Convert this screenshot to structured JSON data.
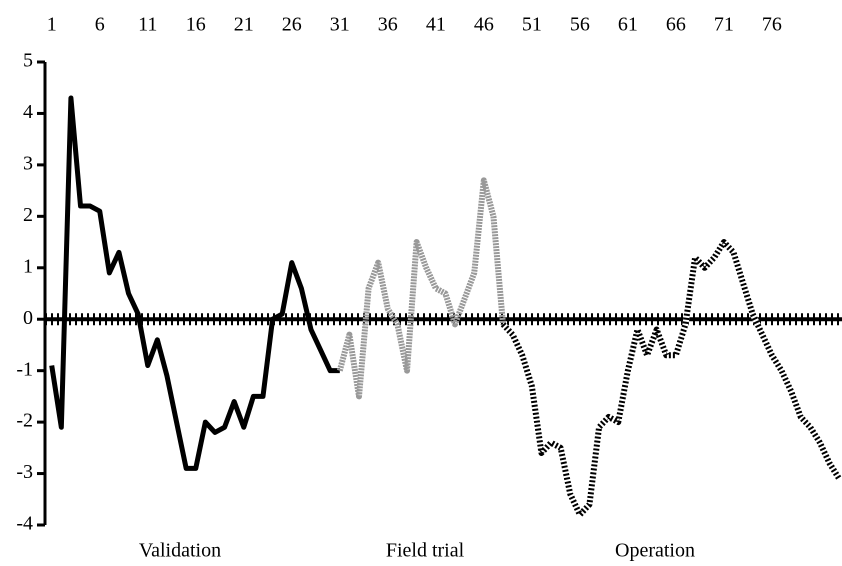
{
  "chart_data": {
    "type": "line",
    "x": [
      1,
      2,
      3,
      4,
      5,
      6,
      7,
      8,
      9,
      10,
      11,
      12,
      13,
      14,
      15,
      16,
      17,
      18,
      19,
      20,
      21,
      22,
      23,
      24,
      25,
      26,
      27,
      28,
      29,
      30,
      31,
      32,
      33,
      34,
      35,
      36,
      37,
      38,
      39,
      40,
      41,
      42,
      43,
      44,
      45,
      46,
      47,
      48,
      49,
      50,
      51,
      52,
      53,
      54,
      55,
      56,
      57,
      58,
      59,
      60,
      61,
      62,
      63,
      64,
      65,
      66,
      67,
      68,
      69,
      70,
      71,
      72,
      73,
      74,
      75,
      76,
      77,
      78,
      79,
      80,
      81,
      82,
      83
    ],
    "xlim": [
      0.3,
      83.3
    ],
    "xticks": [
      1,
      6,
      11,
      16,
      21,
      26,
      31,
      36,
      41,
      46,
      51,
      56,
      61,
      66,
      71,
      76
    ],
    "ylim": [
      -4,
      5
    ],
    "yticks": [
      -4,
      -3,
      -2,
      -1,
      0,
      1,
      2,
      3,
      4,
      5
    ],
    "series": [
      {
        "name": "Validation",
        "color": "#000000",
        "style": "solid",
        "values": [
          -0.9,
          -2.1,
          4.3,
          2.2,
          2.2,
          2.1,
          0.9,
          1.3,
          0.5,
          0.1,
          -0.9,
          -0.4,
          -1.1,
          -2.0,
          -2.9,
          -2.9,
          -2.0,
          -2.2,
          -2.1,
          -1.6,
          -2.1,
          -1.5,
          -1.5,
          0.0,
          0.1,
          1.1,
          0.6,
          -0.2,
          -0.6,
          -1.0,
          -1.0,
          null,
          null,
          null,
          null,
          null,
          null,
          null,
          null,
          null,
          null,
          null,
          null,
          null,
          null,
          null,
          null,
          null,
          null,
          null,
          null,
          null,
          null,
          null,
          null,
          null,
          null,
          null,
          null,
          null,
          null,
          null,
          null,
          null,
          null,
          null,
          null,
          null,
          null,
          null,
          null,
          null,
          null,
          null,
          null,
          null,
          null,
          null,
          null,
          null,
          null,
          null,
          null
        ]
      },
      {
        "name": "Field trial",
        "color": "#999999",
        "style": "dotted",
        "values": [
          null,
          null,
          null,
          null,
          null,
          null,
          null,
          null,
          null,
          null,
          null,
          null,
          null,
          null,
          null,
          null,
          null,
          null,
          null,
          null,
          null,
          null,
          null,
          null,
          null,
          null,
          null,
          null,
          null,
          null,
          -1.0,
          -0.3,
          -1.5,
          0.6,
          1.1,
          0.2,
          -0.1,
          -1.0,
          1.5,
          1.0,
          0.6,
          0.5,
          -0.1,
          0.4,
          0.9,
          2.7,
          2.0,
          -0.1,
          null,
          null,
          null,
          null,
          null,
          null,
          null,
          null,
          null,
          null,
          null,
          null,
          null,
          null,
          null,
          null,
          null,
          null,
          null,
          null,
          null,
          null,
          null,
          null,
          null,
          null,
          null,
          null,
          null,
          null,
          null,
          null,
          null,
          null,
          null
        ]
      },
      {
        "name": "Operation",
        "color": "#000000",
        "style": "hatched",
        "values": [
          null,
          null,
          null,
          null,
          null,
          null,
          null,
          null,
          null,
          null,
          null,
          null,
          null,
          null,
          null,
          null,
          null,
          null,
          null,
          null,
          null,
          null,
          null,
          null,
          null,
          null,
          null,
          null,
          null,
          null,
          null,
          null,
          null,
          null,
          null,
          null,
          null,
          null,
          null,
          null,
          null,
          null,
          null,
          null,
          null,
          null,
          null,
          -0.1,
          -0.3,
          -0.7,
          -1.3,
          -2.6,
          -2.4,
          -2.5,
          -3.4,
          -3.8,
          -3.6,
          -2.1,
          -1.9,
          -2.0,
          -1.0,
          -0.2,
          -0.7,
          -0.2,
          -0.7,
          -0.7,
          -0.1,
          1.2,
          1.0,
          1.2,
          1.5,
          1.3,
          0.7,
          0.1,
          -0.3,
          -0.7,
          -1.0,
          -1.4,
          -1.9,
          -2.1,
          -2.4,
          -2.8,
          -3.1
        ]
      }
    ]
  }
}
